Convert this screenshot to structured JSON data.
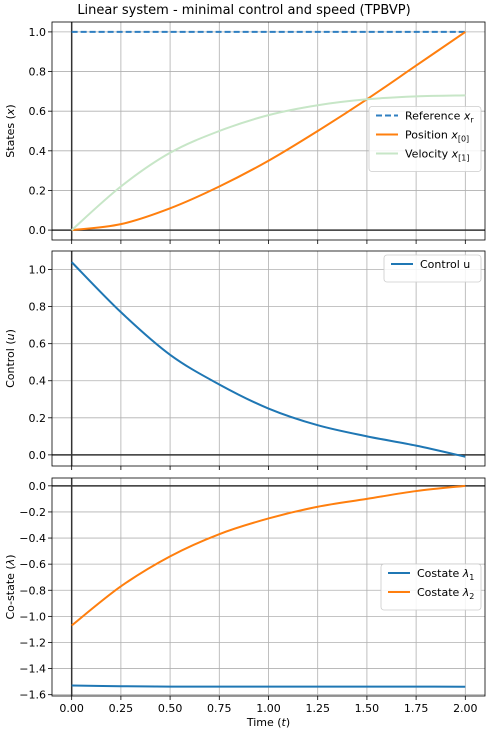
{
  "chart_data": [
    {
      "type": "line",
      "title": "Linear system - minimal control and speed (TPBVP)",
      "ylabel": "States (x)",
      "xlim": [
        -0.1,
        2.1
      ],
      "ylim": [
        -0.05,
        1.05
      ],
      "yticks": [
        "0.0",
        "0.2",
        "0.4",
        "0.6",
        "0.8",
        "1.0"
      ],
      "ytick_values": [
        0,
        0.2,
        0.4,
        0.6,
        0.8,
        1.0
      ],
      "grid": true,
      "legend": "center-right",
      "series": [
        {
          "name": "Reference x_r",
          "style": "dashed",
          "color": "#2f7fc1",
          "x": [
            0,
            2.0
          ],
          "values": [
            1.0,
            1.0
          ]
        },
        {
          "name": "Position x_[0]",
          "style": "solid",
          "color": "#ff7f0e",
          "x": [
            0,
            0.25,
            0.5,
            0.75,
            1.0,
            1.25,
            1.5,
            1.75,
            2.0
          ],
          "values": [
            0.0,
            0.03,
            0.11,
            0.22,
            0.35,
            0.5,
            0.66,
            0.83,
            1.0
          ]
        },
        {
          "name": "Velocity x_[1]",
          "style": "solid",
          "color": "#c7e6c7",
          "x": [
            0,
            0.25,
            0.5,
            0.75,
            1.0,
            1.25,
            1.5,
            1.75,
            2.0
          ],
          "values": [
            0.0,
            0.22,
            0.39,
            0.5,
            0.58,
            0.63,
            0.66,
            0.675,
            0.68
          ]
        }
      ]
    },
    {
      "type": "line",
      "ylabel": "Control (u)",
      "xlim": [
        -0.1,
        2.1
      ],
      "ylim": [
        -0.06,
        1.1
      ],
      "yticks": [
        "0.0",
        "0.2",
        "0.4",
        "0.6",
        "0.8",
        "1.0"
      ],
      "ytick_values": [
        0,
        0.2,
        0.4,
        0.6,
        0.8,
        1.0
      ],
      "grid": true,
      "legend": "top-right",
      "series": [
        {
          "name": "Control u",
          "style": "solid",
          "color": "#1f77b4",
          "x": [
            0,
            0.25,
            0.5,
            0.75,
            1.0,
            1.25,
            1.5,
            1.75,
            2.0
          ],
          "values": [
            1.04,
            0.77,
            0.54,
            0.38,
            0.25,
            0.16,
            0.1,
            0.05,
            -0.01
          ]
        }
      ]
    },
    {
      "type": "line",
      "ylabel": "Co-state (λ)",
      "xlabel": "Time (t)",
      "xlim": [
        -0.1,
        2.1
      ],
      "ylim": [
        -1.61,
        0.06
      ],
      "yticks": [
        "0.0",
        "−0.2",
        "−0.4",
        "−0.6",
        "−0.8",
        "−1.0",
        "−1.2",
        "−1.4",
        "−1.6"
      ],
      "ytick_values": [
        0,
        -0.2,
        -0.4,
        -0.6,
        -0.8,
        -1.0,
        -1.2,
        -1.4,
        -1.6
      ],
      "xticks": [
        "0.00",
        "0.25",
        "0.50",
        "0.75",
        "1.00",
        "1.25",
        "1.50",
        "1.75",
        "2.00"
      ],
      "xtick_values": [
        0,
        0.25,
        0.5,
        0.75,
        1.0,
        1.25,
        1.5,
        1.75,
        2.0
      ],
      "grid": true,
      "legend": "center-right",
      "series": [
        {
          "name": "Costate λ_1",
          "style": "solid",
          "color": "#1f77b4",
          "x": [
            0,
            0.25,
            0.5,
            0.75,
            1.0,
            1.25,
            1.5,
            1.75,
            2.0
          ],
          "values": [
            -1.53,
            -1.535,
            -1.538,
            -1.538,
            -1.538,
            -1.538,
            -1.538,
            -1.538,
            -1.539
          ]
        },
        {
          "name": "Costate λ_2",
          "style": "solid",
          "color": "#ff7f0e",
          "x": [
            0,
            0.25,
            0.5,
            0.75,
            1.0,
            1.25,
            1.5,
            1.75,
            2.0
          ],
          "values": [
            -1.07,
            -0.77,
            -0.54,
            -0.37,
            -0.25,
            -0.16,
            -0.1,
            -0.04,
            0.0
          ]
        }
      ]
    }
  ]
}
